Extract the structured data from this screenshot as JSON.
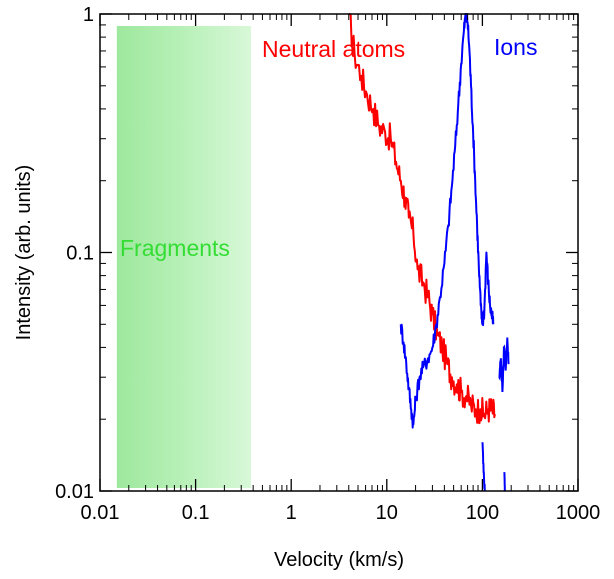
{
  "chart_data": {
    "type": "line",
    "x_scale": "log",
    "y_scale": "log",
    "xlabel": "Velocity (km/s)",
    "ylabel": "Intensity (arb. units)",
    "xlim": [
      0.01,
      1000
    ],
    "ylim": [
      0.01,
      1
    ],
    "x_ticks": [
      {
        "value": 0.01,
        "label": "0.01"
      },
      {
        "value": 0.1,
        "label": "0.1"
      },
      {
        "value": 1,
        "label": "1"
      },
      {
        "value": 10,
        "label": "10"
      },
      {
        "value": 100,
        "label": "100"
      },
      {
        "value": 1000,
        "label": "1000"
      }
    ],
    "y_ticks": [
      {
        "value": 0.01,
        "label": "0.01"
      },
      {
        "value": 0.1,
        "label": "0.1"
      },
      {
        "value": 1,
        "label": "1"
      }
    ],
    "grid": false,
    "shaded_region": {
      "label": "Fragments",
      "x_range": [
        0.015,
        0.38
      ],
      "color": "#9ee89e"
    },
    "series": [
      {
        "name": "Neutral atoms",
        "color": "#ff0000",
        "x": [
          4.0,
          4.6,
          5.4,
          6.2,
          7.2,
          8.3,
          9.6,
          11,
          12.5,
          14,
          15.5,
          17,
          19,
          21,
          24,
          27,
          30,
          34,
          38,
          43,
          48,
          54,
          60,
          68,
          76,
          85,
          95,
          105,
          115,
          125,
          135
        ],
        "y": [
          1.0,
          0.68,
          0.55,
          0.46,
          0.4,
          0.34,
          0.32,
          0.3,
          0.24,
          0.2,
          0.17,
          0.14,
          0.12,
          0.085,
          0.075,
          0.065,
          0.055,
          0.045,
          0.04,
          0.034,
          0.03,
          0.028,
          0.026,
          0.025,
          0.023,
          0.022,
          0.022,
          0.021,
          0.022,
          0.022,
          0.021
        ]
      },
      {
        "name": "Ions",
        "color": "#0000ff",
        "x": [
          14,
          15,
          16,
          17,
          18,
          19,
          20,
          22,
          24,
          27,
          30,
          33,
          36,
          40,
          44,
          48,
          52,
          56,
          60,
          64,
          67,
          70,
          73,
          76,
          80,
          84,
          88,
          92,
          96,
          100,
          105,
          110,
          115,
          120,
          125,
          130
        ],
        "y": [
          0.05,
          0.042,
          0.034,
          0.027,
          0.022,
          0.019,
          0.024,
          0.03,
          0.033,
          0.036,
          0.04,
          0.05,
          0.065,
          0.09,
          0.13,
          0.19,
          0.28,
          0.42,
          0.62,
          0.85,
          1.0,
          0.92,
          0.72,
          0.5,
          0.32,
          0.2,
          0.13,
          0.085,
          0.06,
          0.05,
          0.058,
          0.1,
          0.075,
          0.06,
          0.055,
          0.05
        ]
      }
    ],
    "extra_ion_fragments": [
      {
        "x": [
          100,
          103,
          106
        ],
        "y": [
          0.016,
          0.012,
          0.01
        ]
      },
      {
        "x": [
          150,
          156,
          162,
          168,
          175,
          182,
          188
        ],
        "y": [
          0.03,
          0.036,
          0.026,
          0.04,
          0.032,
          0.044,
          0.034
        ]
      },
      {
        "x": [
          170,
          172
        ],
        "y": [
          0.012,
          0.01
        ]
      }
    ],
    "annotations": [
      {
        "text": "Neutral atoms",
        "color": "#ff0000"
      },
      {
        "text": "Ions",
        "color": "#0000ff"
      },
      {
        "text": "Fragments",
        "color": "#33dd33"
      }
    ]
  }
}
